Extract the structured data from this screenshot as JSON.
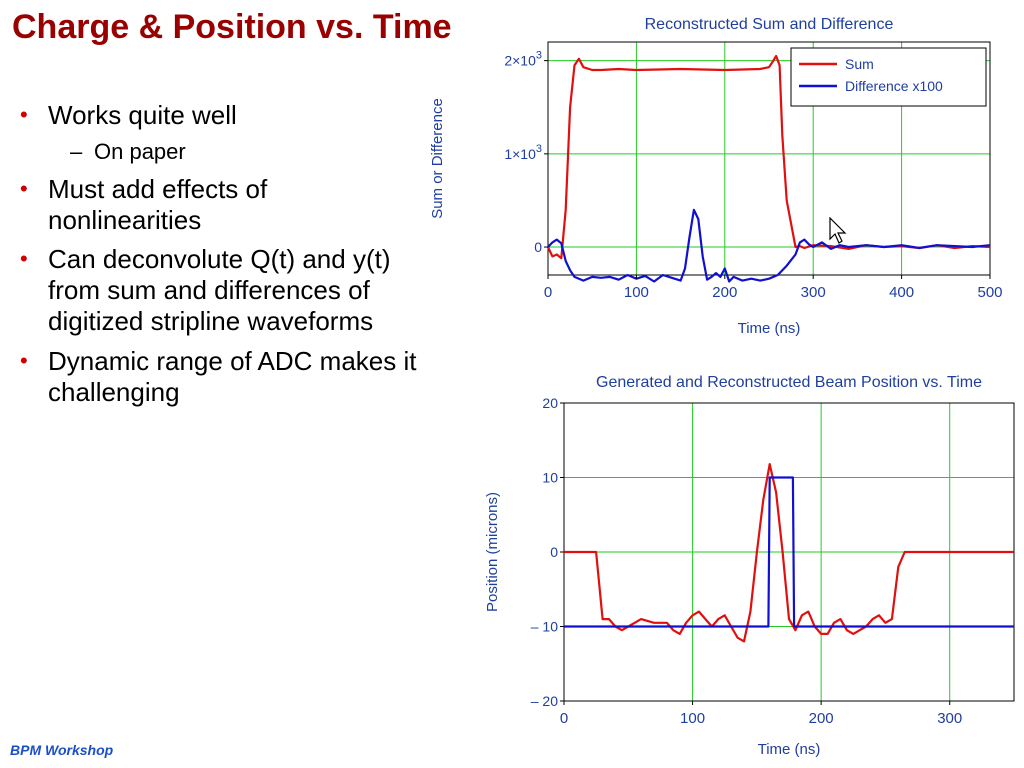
{
  "slide": {
    "title": "Charge & Position vs. Time",
    "bullets": [
      {
        "level": 1,
        "text": "Works quite well"
      },
      {
        "level": 2,
        "text": "On paper"
      },
      {
        "level": 1,
        "text": "Must add effects of nonlinearities"
      },
      {
        "level": 1,
        "text": "Can deconvolute Q(t) and y(t) from sum and differences of digitized stripline waveforms"
      },
      {
        "level": 1,
        "text": "Dynamic range of ADC makes it challenging"
      }
    ],
    "bullet_marks": {
      "level1": "•",
      "level2": "–"
    },
    "footer": "BPM Workshop"
  },
  "colors": {
    "title": "#990000",
    "footer": "#1a4fc9",
    "axis_text": "#1f3f9f",
    "grid": "#22cc22",
    "sum": "#e01010",
    "difference": "#1010d0",
    "bullet": "#cc0000"
  },
  "chart_data": [
    {
      "type": "line",
      "title": "Reconstructed Sum and Difference",
      "xlabel": "Time (ns)",
      "ylabel": "Sum or Difference",
      "xlim": [
        0,
        500
      ],
      "ylim": [
        -300,
        2200
      ],
      "xticks": [
        0,
        100,
        200,
        300,
        400,
        500
      ],
      "yticks": [
        {
          "value": 0,
          "label": "0",
          "exp": ""
        },
        {
          "value": 1000,
          "label": "1×10",
          "exp": "3"
        },
        {
          "value": 2000,
          "label": "2×10",
          "exp": "3"
        }
      ],
      "grid": true,
      "legend": "top-right",
      "series": [
        {
          "name": "Sum",
          "color_key": "sum",
          "x": [
            0,
            5,
            10,
            15,
            20,
            25,
            30,
            35,
            40,
            50,
            60,
            80,
            100,
            150,
            200,
            240,
            250,
            255,
            258,
            262,
            265,
            270,
            280,
            285,
            290,
            300,
            320,
            340,
            360,
            380,
            400,
            420,
            440,
            460,
            480,
            500
          ],
          "y": [
            0,
            -100,
            -80,
            -120,
            400,
            1500,
            1950,
            2020,
            1930,
            1900,
            1900,
            1910,
            1900,
            1910,
            1900,
            1910,
            1930,
            2000,
            2050,
            1950,
            1200,
            500,
            0,
            10,
            -10,
            20,
            10,
            -20,
            20,
            0,
            10,
            -10,
            20,
            -10,
            10,
            0
          ]
        },
        {
          "name": "Difference x100",
          "color_key": "difference",
          "x": [
            0,
            5,
            10,
            15,
            20,
            25,
            30,
            40,
            50,
            60,
            70,
            80,
            90,
            100,
            110,
            120,
            130,
            140,
            150,
            155,
            160,
            165,
            170,
            175,
            180,
            185,
            190,
            195,
            200,
            205,
            210,
            220,
            230,
            240,
            250,
            260,
            270,
            280,
            285,
            290,
            295,
            300,
            310,
            320,
            330,
            340,
            360,
            380,
            400,
            420,
            440,
            460,
            480,
            500
          ],
          "y": [
            0,
            50,
            80,
            40,
            -150,
            -250,
            -320,
            -360,
            -320,
            -330,
            -320,
            -350,
            -300,
            -340,
            -310,
            -370,
            -300,
            -330,
            -360,
            -230,
            100,
            400,
            300,
            -100,
            -350,
            -320,
            -280,
            -320,
            -230,
            -370,
            -320,
            -360,
            -340,
            -360,
            -340,
            -300,
            -200,
            -80,
            50,
            80,
            30,
            0,
            50,
            -20,
            20,
            0,
            20,
            0,
            20,
            -10,
            20,
            10,
            0,
            20
          ]
        }
      ]
    },
    {
      "type": "line",
      "title": "Generated and Reconstructed Beam Position vs. Time",
      "xlabel": "Time (ns)",
      "ylabel": "Position (microns)",
      "xlim": [
        0,
        350
      ],
      "ylim": [
        -20,
        20
      ],
      "xticks": [
        0,
        100,
        200,
        300
      ],
      "yticks": [
        {
          "value": -20,
          "label": "– 20",
          "exp": ""
        },
        {
          "value": -10,
          "label": "– 10",
          "exp": ""
        },
        {
          "value": 0,
          "label": "0",
          "exp": ""
        },
        {
          "value": 10,
          "label": "10",
          "exp": ""
        },
        {
          "value": 20,
          "label": "20",
          "exp": ""
        }
      ],
      "grid": true,
      "legend": "none",
      "series": [
        {
          "color_key": "sum",
          "x": [
            0,
            25,
            30,
            35,
            40,
            45,
            50,
            55,
            60,
            70,
            80,
            85,
            90,
            95,
            100,
            105,
            110,
            115,
            120,
            125,
            130,
            135,
            140,
            145,
            150,
            155,
            160,
            165,
            170,
            175,
            180,
            185,
            190,
            195,
            200,
            205,
            210,
            215,
            220,
            225,
            230,
            235,
            240,
            245,
            250,
            255,
            260,
            265,
            270,
            275,
            280,
            350
          ],
          "y": [
            0,
            0,
            -9,
            -9,
            -10,
            -10.5,
            -10,
            -9.5,
            -9,
            -9.5,
            -9.5,
            -10.5,
            -11,
            -9.5,
            -8.5,
            -8,
            -9,
            -10,
            -9,
            -8.5,
            -10,
            -11.5,
            -12,
            -8,
            0,
            7,
            11.8,
            8,
            0,
            -9,
            -10.5,
            -8.5,
            -8,
            -10,
            -11,
            -11,
            -9.5,
            -9,
            -10.5,
            -11,
            -10.5,
            -10,
            -9,
            -8.5,
            -9.5,
            -9,
            -2,
            0,
            0,
            0,
            0,
            0
          ]
        },
        {
          "color_key": "difference",
          "x": [
            0,
            159,
            160,
            178,
            179,
            350
          ],
          "y": [
            -10,
            -10,
            10,
            10,
            -10,
            -10
          ]
        }
      ]
    }
  ]
}
